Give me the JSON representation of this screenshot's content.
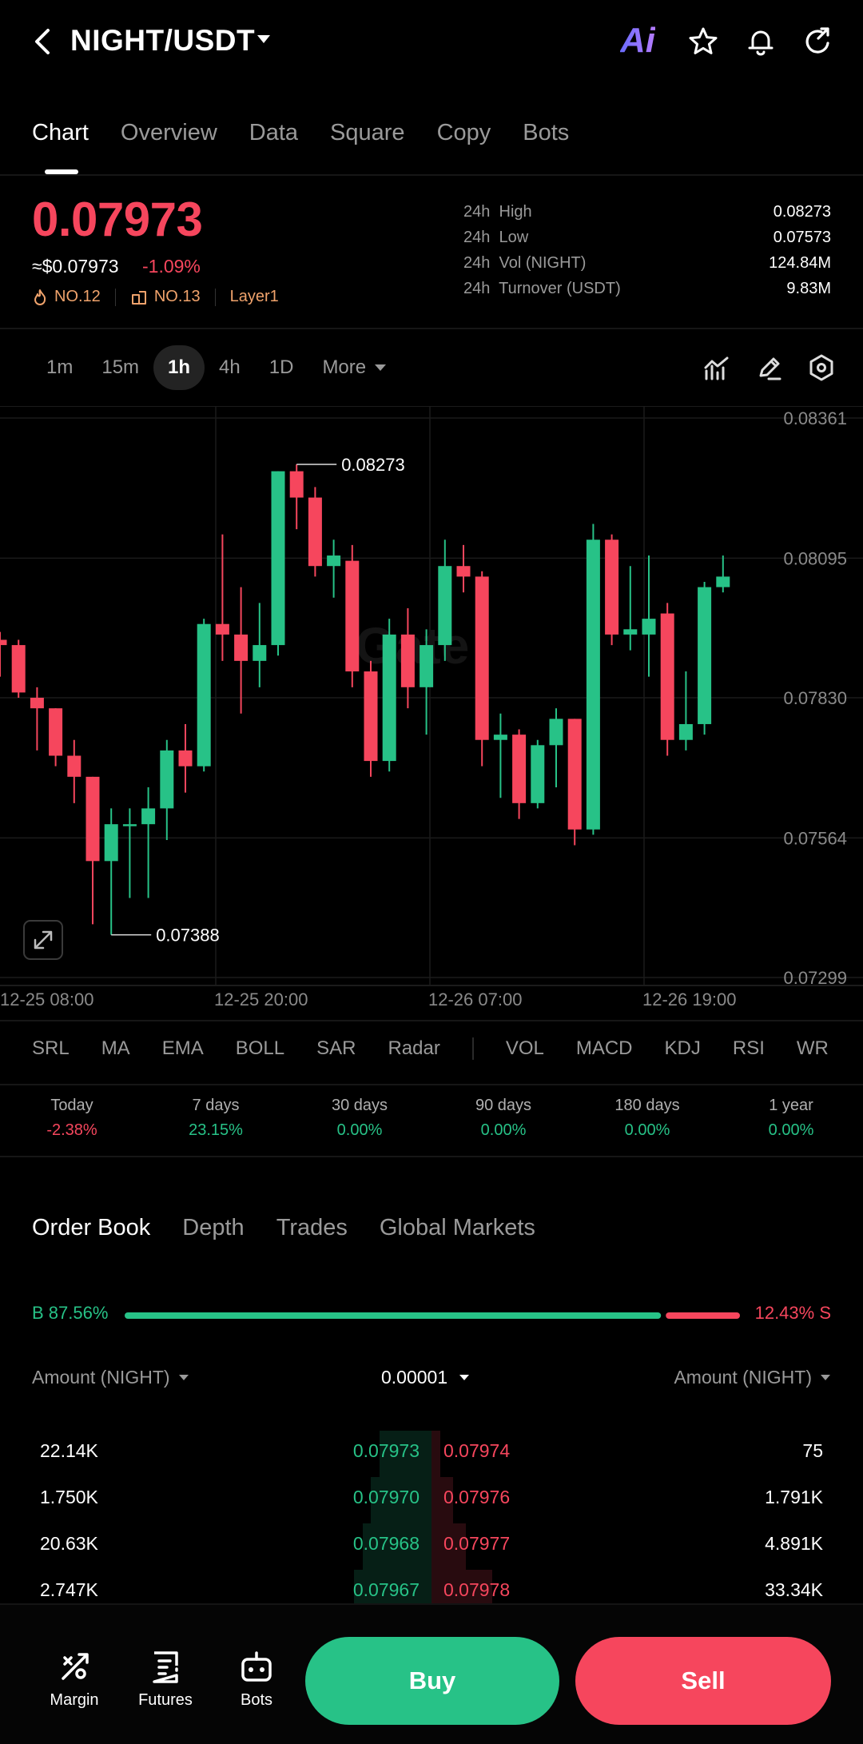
{
  "header": {
    "pair": "NIGHT/USDT",
    "ai_label": "Ai"
  },
  "tabs": [
    "Chart",
    "Overview",
    "Data",
    "Square",
    "Copy",
    "Bots"
  ],
  "ticker": {
    "last_price": "0.07973",
    "usd_price": "≈$0.07973",
    "change": "-1.09%",
    "rank1": "NO.12",
    "rank2": "NO.13",
    "category": "Layer1",
    "stats": [
      {
        "k1": "24h",
        "k2": "High",
        "v": "0.08273"
      },
      {
        "k1": "24h",
        "k2": "Low",
        "v": "0.07573"
      },
      {
        "k1": "24h",
        "k2": "Vol (NIGHT)",
        "v": "124.84M"
      },
      {
        "k1": "24h",
        "k2": "Turnover (USDT)",
        "v": "9.83M"
      }
    ]
  },
  "timeframes": [
    "1m",
    "15m",
    "1h",
    "4h",
    "1D"
  ],
  "timeframe_more": "More",
  "chart_data": {
    "type": "candlestick",
    "y_ticks": [
      "0.08361",
      "0.08095",
      "0.07830",
      "0.07564",
      "0.07299"
    ],
    "ylim": [
      0.07299,
      0.08361
    ],
    "x_ticks": [
      "12-25 08:00",
      "12-25 20:00",
      "12-26 07:00",
      "12-26 19:00"
    ],
    "high_marker": "0.08273",
    "low_marker": "0.07388",
    "candles": [
      [
        0.0794,
        0.0793,
        0.07955,
        0.0787
      ],
      [
        0.0793,
        0.0784,
        0.0794,
        0.0783
      ],
      [
        0.0783,
        0.0781,
        0.0785,
        0.0773
      ],
      [
        0.0781,
        0.0772,
        0.0781,
        0.077
      ],
      [
        0.0772,
        0.0768,
        0.0775,
        0.0763
      ],
      [
        0.0768,
        0.0752,
        0.0768,
        0.074
      ],
      [
        0.0752,
        0.0759,
        0.0762,
        0.0738
      ],
      [
        0.0759,
        0.0759,
        0.0762,
        0.0745
      ],
      [
        0.0759,
        0.0762,
        0.0766,
        0.0745
      ],
      [
        0.0762,
        0.0773,
        0.0775,
        0.0756
      ],
      [
        0.0773,
        0.077,
        0.0778,
        0.0765
      ],
      [
        0.077,
        0.0797,
        0.0798,
        0.0769
      ],
      [
        0.0797,
        0.0795,
        0.0814,
        0.079
      ],
      [
        0.0795,
        0.079,
        0.0804,
        0.078
      ],
      [
        0.079,
        0.0793,
        0.0801,
        0.0785
      ],
      [
        0.0793,
        0.0826,
        0.0826,
        0.0791
      ],
      [
        0.0826,
        0.0821,
        0.08273,
        0.0815
      ],
      [
        0.0821,
        0.0808,
        0.0823,
        0.0806
      ],
      [
        0.0808,
        0.081,
        0.0813,
        0.0802
      ],
      [
        0.0809,
        0.0788,
        0.0812,
        0.0785
      ],
      [
        0.0788,
        0.0771,
        0.079,
        0.0768
      ],
      [
        0.0771,
        0.0795,
        0.0798,
        0.0769
      ],
      [
        0.0795,
        0.0785,
        0.08,
        0.0781
      ],
      [
        0.0785,
        0.0793,
        0.0796,
        0.0776
      ],
      [
        0.0793,
        0.0808,
        0.0813,
        0.079
      ],
      [
        0.0808,
        0.0806,
        0.0812,
        0.0803
      ],
      [
        0.0806,
        0.0775,
        0.0807,
        0.077
      ],
      [
        0.0775,
        0.0776,
        0.078,
        0.0764
      ],
      [
        0.0776,
        0.0763,
        0.0777,
        0.076
      ],
      [
        0.0763,
        0.0774,
        0.0775,
        0.0762
      ],
      [
        0.0774,
        0.0779,
        0.0781,
        0.0766
      ],
      [
        0.0779,
        0.0758,
        0.0779,
        0.0755
      ],
      [
        0.0758,
        0.0813,
        0.0816,
        0.0757
      ],
      [
        0.0813,
        0.0795,
        0.0814,
        0.0793
      ],
      [
        0.0795,
        0.0796,
        0.0808,
        0.0792
      ],
      [
        0.0795,
        0.0798,
        0.081,
        0.0787
      ],
      [
        0.0799,
        0.0775,
        0.0801,
        0.0772
      ],
      [
        0.0775,
        0.0778,
        0.0788,
        0.0773
      ],
      [
        0.0778,
        0.0804,
        0.0805,
        0.0776
      ],
      [
        0.0804,
        0.0806,
        0.081,
        0.0803
      ]
    ]
  },
  "indicators": {
    "main": [
      "SRL",
      "MA",
      "EMA",
      "BOLL",
      "SAR",
      "Radar"
    ],
    "sub": [
      "VOL",
      "MACD",
      "KDJ",
      "RSI",
      "WR"
    ]
  },
  "performance": [
    {
      "label": "Today",
      "value": "-2.38%",
      "color": "#f6465d"
    },
    {
      "label": "7 days",
      "value": "23.15%",
      "color": "#27c287"
    },
    {
      "label": "30 days",
      "value": "0.00%",
      "color": "#27c287"
    },
    {
      "label": "90 days",
      "value": "0.00%",
      "color": "#27c287"
    },
    {
      "label": "180 days",
      "value": "0.00%",
      "color": "#27c287"
    },
    {
      "label": "1 year",
      "value": "0.00%",
      "color": "#27c287"
    }
  ],
  "orderbook": {
    "tabs": [
      "Order Book",
      "Depth",
      "Trades",
      "Global Markets"
    ],
    "buy_ratio_label": "B 87.56%",
    "sell_ratio_label": "12.43% S",
    "buy_ratio": 0.8756,
    "left_header": "Amount (NIGHT)",
    "precision": "0.00001",
    "right_header": "Amount (NIGHT)",
    "rows": [
      {
        "bid_amt": "22.14K",
        "bid": "0.07973",
        "ask": "0.07974",
        "ask_amt": "75",
        "bid_depth": 0.12,
        "ask_depth": 0.02
      },
      {
        "bid_amt": "1.750K",
        "bid": "0.07970",
        "ask": "0.07976",
        "ask_amt": "1.791K",
        "bid_depth": 0.14,
        "ask_depth": 0.05
      },
      {
        "bid_amt": "20.63K",
        "bid": "0.07968",
        "ask": "0.07977",
        "ask_amt": "4.891K",
        "bid_depth": 0.16,
        "ask_depth": 0.08
      },
      {
        "bid_amt": "2.747K",
        "bid": "0.07967",
        "ask": "0.07978",
        "ask_amt": "33.34K",
        "bid_depth": 0.18,
        "ask_depth": 0.14
      }
    ]
  },
  "bottom_nav": [
    "Margin",
    "Futures",
    "Bots"
  ],
  "actions": {
    "buy": "Buy",
    "sell": "Sell"
  }
}
